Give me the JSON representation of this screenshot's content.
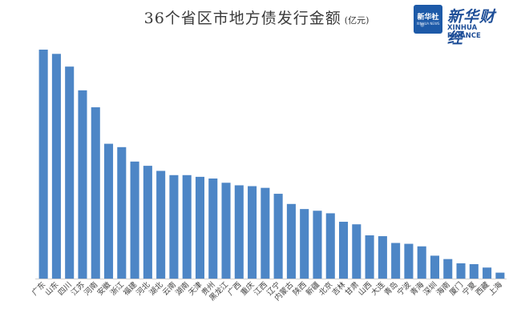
{
  "title": "36个省区市地方债发行金额",
  "unit": "(亿元)",
  "logo": {
    "badge_text": "新华社",
    "badge_sub": "XINHUA NEWS",
    "brand_cn": "新华财经",
    "brand_en": "XINHUA FINANCE"
  },
  "colors": {
    "bar": "#4d86c6",
    "axis": "#d0d0d0",
    "title": "#3a3a3a"
  },
  "chart_data": {
    "type": "bar",
    "title": "36个省区市地方债发行金额",
    "unit": "(亿元)",
    "categories": [
      "广东",
      "山东",
      "四川",
      "江苏",
      "河南",
      "安徽",
      "浙江",
      "福建",
      "河北",
      "湖北",
      "云南",
      "湖南",
      "天津",
      "贵州",
      "黑龙江",
      "广西",
      "重庆",
      "江西",
      "辽宁",
      "内蒙古",
      "陕西",
      "新疆",
      "北京",
      "吉林",
      "甘肃",
      "山西",
      "大连",
      "青岛",
      "宁波",
      "青海",
      "深圳",
      "海南",
      "厦门",
      "宁夏",
      "西藏",
      "上海"
    ],
    "values": [
      270,
      265,
      250,
      222,
      202,
      159,
      155,
      138,
      133,
      127,
      122,
      122,
      120,
      118,
      113,
      110,
      109,
      107,
      100,
      88,
      82,
      80,
      77,
      67,
      64,
      51,
      50,
      42,
      41,
      38,
      27,
      23,
      18,
      17,
      13,
      7
    ],
    "ylim": [
      0,
      280
    ],
    "grid": false,
    "legend": "none"
  }
}
